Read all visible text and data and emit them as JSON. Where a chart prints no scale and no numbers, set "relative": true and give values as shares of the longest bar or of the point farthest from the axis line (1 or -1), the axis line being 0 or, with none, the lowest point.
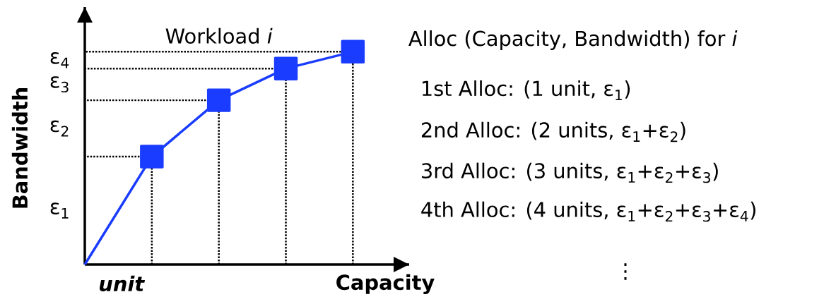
{
  "chart_data": {
    "type": "line",
    "relative": true,
    "title": "Workload *i*",
    "xlabel": "Capacity",
    "ylabel": "Bandwidth",
    "categories": [
      null,
      null,
      null,
      null,
      null
    ],
    "series": [
      {
        "color": "#1a3cff",
        "values": [
          0,
          0.507,
          0.772,
          0.921,
          1.0
        ]
      }
    ],
    "marker": "square",
    "line_style": "solid",
    "annotations": [
      "ε$_{1}$",
      "ε$_{2}$",
      "ε$_{3}$",
      "ε$_{4}$",
      "*unit*",
      "Alloc (Capacity, Bandwidth) for *i*",
      "1st Alloc: (1 unit, ε$_{1}$)",
      "2nd Alloc: (2 units, ε$_{1}$+ε$_{2}$)",
      "3rd Alloc: (3 units, ε$_{1}$+ε$_{2}$+ε$_{3}$)",
      "4th Alloc: (4 units, ε$_{1}$+ε$_{2}$+ε$_{3}$+ε$_{4}$)",
      "⋮"
    ]
  }
}
